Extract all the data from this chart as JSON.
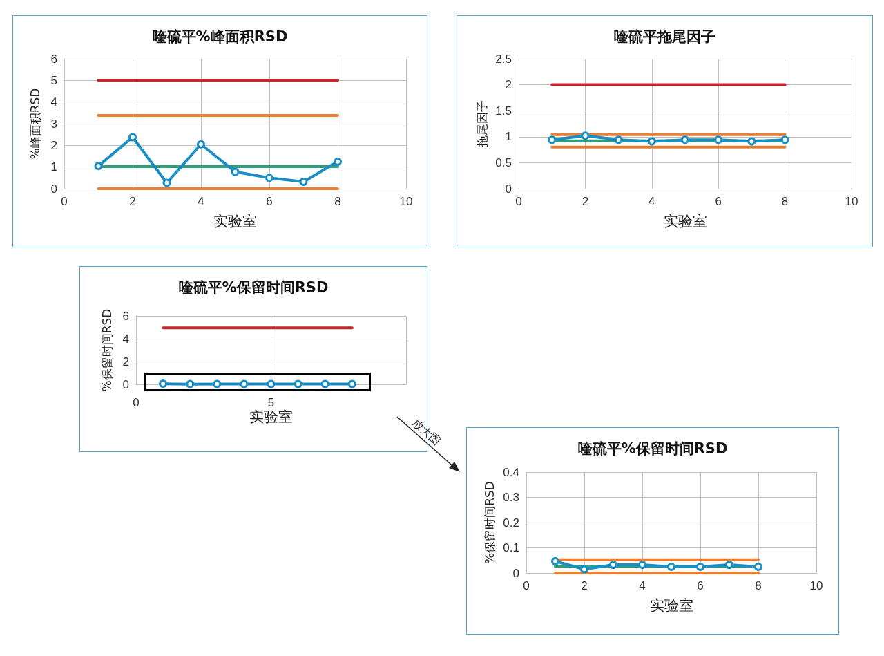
{
  "chart_data": [
    {
      "type": "line",
      "title": "喹硫平%峰面积RSD",
      "xlabel": "实验室",
      "ylabel": "%峰面积RSD",
      "xlim": [
        0,
        10
      ],
      "xticks": [
        0,
        2,
        4,
        6,
        8,
        10
      ],
      "ylim": [
        0,
        6
      ],
      "yticks": [
        0,
        1,
        2,
        3,
        4,
        5,
        6
      ],
      "grid": true,
      "marker": "circle",
      "x": [
        1,
        2,
        3,
        4,
        5,
        6,
        7,
        8
      ],
      "series": [
        {
          "color": "#c0282d",
          "values": [
            5,
            5,
            5,
            5,
            5,
            5,
            5,
            5
          ],
          "marker": "none"
        },
        {
          "color": "#ed7d31",
          "values": [
            3.38,
            3.38,
            3.38,
            3.38,
            3.38,
            3.38,
            3.38,
            3.38
          ],
          "marker": "none"
        },
        {
          "color": "#2e9e7c",
          "values": [
            1.02,
            1.02,
            1.02,
            1.02,
            1.02,
            1.02,
            1.02,
            1.02
          ],
          "marker": "none"
        },
        {
          "color": "#ed7d31",
          "values": [
            0,
            0,
            0,
            0,
            0,
            0,
            0,
            0
          ],
          "marker": "none"
        },
        {
          "color": "#1a8fc6",
          "values": [
            1.05,
            2.38,
            0.27,
            2.05,
            0.78,
            0.5,
            0.32,
            1.25
          ]
        }
      ]
    },
    {
      "type": "line",
      "title": "喹硫平拖尾因子",
      "xlabel": "实验室",
      "ylabel": "拖尾因子",
      "xlim": [
        0,
        10
      ],
      "xticks": [
        0,
        2,
        4,
        6,
        8,
        10
      ],
      "ylim": [
        0,
        2.5
      ],
      "yticks": [
        0,
        0.5,
        1,
        1.5,
        2,
        2.5
      ],
      "grid": true,
      "marker": "circle",
      "x": [
        1,
        2,
        3,
        4,
        5,
        6,
        7,
        8
      ],
      "series": [
        {
          "color": "#c0282d",
          "values": [
            2,
            2,
            2,
            2,
            2,
            2,
            2,
            2
          ],
          "marker": "none"
        },
        {
          "color": "#ed7d31",
          "values": [
            1.04,
            1.04,
            1.04,
            1.04,
            1.04,
            1.04,
            1.04,
            1.04
          ],
          "marker": "none"
        },
        {
          "color": "#2e9e7c",
          "values": [
            0.92,
            0.92,
            0.92,
            0.92,
            0.92,
            0.92,
            0.92,
            0.92
          ],
          "marker": "none"
        },
        {
          "color": "#ed7d31",
          "values": [
            0.8,
            0.8,
            0.8,
            0.8,
            0.8,
            0.8,
            0.8,
            0.8
          ],
          "marker": "none"
        },
        {
          "color": "#1a8fc6",
          "values": [
            0.94,
            1.02,
            0.94,
            0.91,
            0.94,
            0.94,
            0.91,
            0.94
          ]
        }
      ]
    },
    {
      "type": "line",
      "title": "喹硫平%保留时间RSD",
      "xlabel": "实验室",
      "ylabel": "%保留时间RSD",
      "xlim": [
        0,
        10
      ],
      "xticks": [
        0,
        5
      ],
      "ylim": [
        0,
        6
      ],
      "yticks": [
        0,
        2,
        4,
        6
      ],
      "grid": true,
      "marker": "circle",
      "x": [
        1,
        2,
        3,
        4,
        5,
        6,
        7,
        8
      ],
      "annotations": [
        "放大图"
      ],
      "series": [
        {
          "color": "#c0282d",
          "values": [
            4.95,
            4.95,
            4.95,
            4.95,
            4.95,
            4.95,
            4.95,
            4.95
          ],
          "marker": "none"
        },
        {
          "color": "#1a8fc6",
          "values": [
            0.05,
            0.02,
            0.03,
            0.03,
            0.03,
            0.03,
            0.03,
            0.03
          ]
        }
      ]
    },
    {
      "type": "line",
      "title": "喹硫平%保留时间RSD",
      "xlabel": "实验室",
      "ylabel": "%保留时间RSD",
      "xlim": [
        0,
        10
      ],
      "xticks": [
        0,
        2,
        4,
        6,
        8,
        10
      ],
      "ylim": [
        0,
        0.4
      ],
      "yticks": [
        0,
        0.1,
        0.2,
        0.3,
        0.4
      ],
      "grid": true,
      "marker": "circle",
      "x": [
        1,
        2,
        3,
        4,
        5,
        6,
        7,
        8
      ],
      "series": [
        {
          "color": "#ed7d31",
          "values": [
            0.053,
            0.053,
            0.053,
            0.053,
            0.053,
            0.053,
            0.053,
            0.053
          ],
          "marker": "none"
        },
        {
          "color": "#2e9e7c",
          "values": [
            0.027,
            0.027,
            0.027,
            0.027,
            0.027,
            0.027,
            0.027,
            0.027
          ],
          "marker": "none"
        },
        {
          "color": "#ed7d31",
          "values": [
            0,
            0,
            0,
            0,
            0,
            0,
            0,
            0
          ],
          "marker": "none"
        },
        {
          "color": "#1a8fc6",
          "values": [
            0.047,
            0.015,
            0.033,
            0.033,
            0.025,
            0.025,
            0.033,
            0.025
          ]
        }
      ]
    }
  ]
}
